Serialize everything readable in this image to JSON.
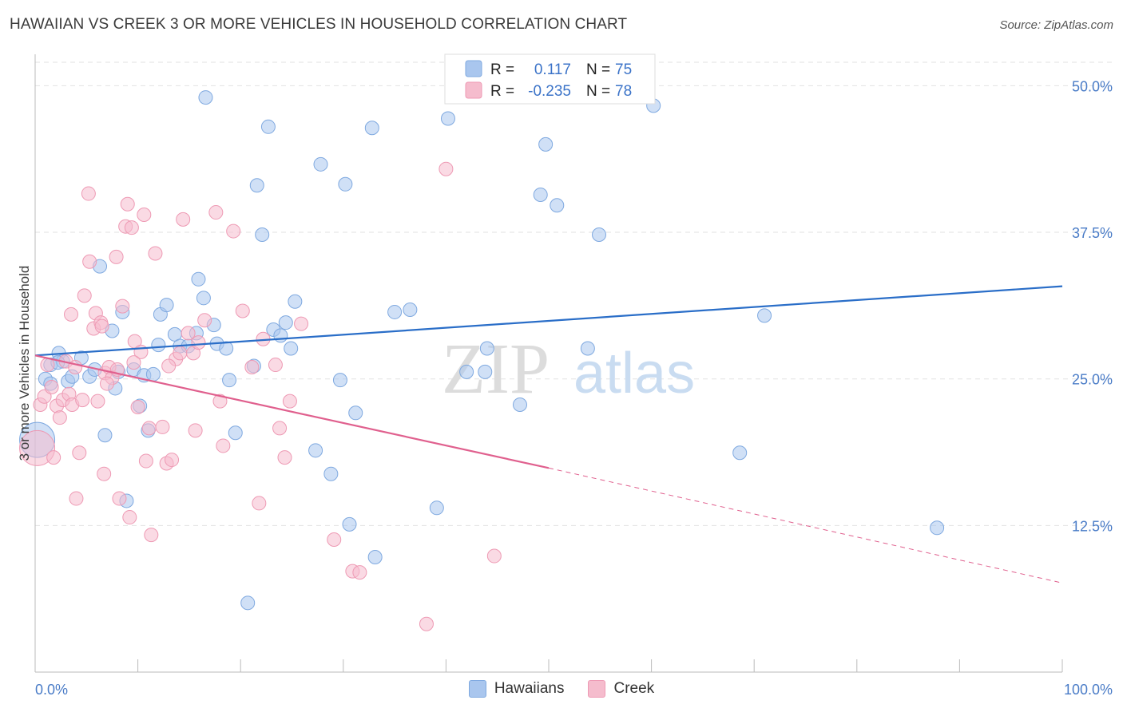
{
  "title": "HAWAIIAN VS CREEK 3 OR MORE VEHICLES IN HOUSEHOLD CORRELATION CHART",
  "source": "Source: ZipAtlas.com",
  "watermark": {
    "zip": "ZIP",
    "atlas": "atlas"
  },
  "legend": {
    "r_label": "R =",
    "n_label": "N =",
    "entries": [
      {
        "r": "0.117",
        "n": "75"
      },
      {
        "r": "-0.235",
        "n": "78"
      }
    ]
  },
  "bottom_legend": [
    "Hawaiians",
    "Creek"
  ],
  "chart_data": {
    "type": "scatter",
    "title": "HAWAIIAN VS CREEK 3 OR MORE VEHICLES IN HOUSEHOLD CORRELATION CHART",
    "xlabel": "",
    "ylabel": "3 or more Vehicles in Household",
    "xlim": [
      0,
      100
    ],
    "ylim": [
      0,
      52
    ],
    "x_tick_labels": [
      "0.0%",
      "100.0%"
    ],
    "y_ticks": [
      12.5,
      25.0,
      37.5,
      50.0
    ],
    "y_tick_labels": [
      "12.5%",
      "25.0%",
      "37.5%",
      "50.0%"
    ],
    "grid": true,
    "series": [
      {
        "name": "Hawaiians",
        "color": "#7fa9e0",
        "fill": "#a9c6ee",
        "r": 0.117,
        "n": 75,
        "trend": {
          "x": [
            0,
            100
          ],
          "y": [
            27.0,
            32.9
          ],
          "color": "#2a6ec8"
        },
        "points": [
          [
            0.2,
            19.8
          ],
          [
            1.0,
            25.0
          ],
          [
            1.5,
            26.2
          ],
          [
            2.3,
            27.2
          ],
          [
            2.7,
            26.5
          ],
          [
            3.2,
            24.8
          ],
          [
            3.6,
            25.2
          ],
          [
            4.5,
            26.8
          ],
          [
            5.3,
            25.2
          ],
          [
            5.8,
            25.8
          ],
          [
            6.3,
            34.6
          ],
          [
            6.8,
            20.2
          ],
          [
            7.5,
            29.1
          ],
          [
            7.8,
            24.2
          ],
          [
            8.5,
            30.7
          ],
          [
            8.9,
            14.6
          ],
          [
            9.6,
            25.8
          ],
          [
            10.2,
            22.7
          ],
          [
            10.6,
            25.3
          ],
          [
            11.0,
            20.6
          ],
          [
            11.5,
            25.4
          ],
          [
            12.2,
            30.5
          ],
          [
            12.8,
            31.3
          ],
          [
            13.6,
            28.8
          ],
          [
            14.1,
            27.8
          ],
          [
            14.9,
            27.8
          ],
          [
            15.7,
            28.9
          ],
          [
            15.9,
            33.5
          ],
          [
            16.4,
            31.9
          ],
          [
            16.6,
            49.0
          ],
          [
            17.4,
            29.6
          ],
          [
            17.7,
            28.0
          ],
          [
            18.6,
            27.6
          ],
          [
            18.9,
            24.9
          ],
          [
            19.5,
            20.4
          ],
          [
            20.7,
            5.9
          ],
          [
            21.3,
            26.1
          ],
          [
            21.6,
            41.5
          ],
          [
            22.1,
            37.3
          ],
          [
            22.7,
            46.5
          ],
          [
            23.2,
            29.2
          ],
          [
            23.9,
            28.7
          ],
          [
            24.4,
            29.8
          ],
          [
            24.9,
            27.6
          ],
          [
            25.3,
            31.6
          ],
          [
            27.3,
            18.9
          ],
          [
            27.8,
            43.3
          ],
          [
            28.8,
            16.9
          ],
          [
            29.7,
            24.9
          ],
          [
            30.2,
            41.6
          ],
          [
            30.6,
            12.6
          ],
          [
            31.2,
            22.1
          ],
          [
            32.8,
            46.4
          ],
          [
            33.1,
            9.8
          ],
          [
            35.0,
            30.7
          ],
          [
            36.5,
            30.9
          ],
          [
            39.1,
            14.0
          ],
          [
            40.2,
            47.2
          ],
          [
            42.0,
            25.6
          ],
          [
            43.8,
            25.6
          ],
          [
            44.0,
            27.6
          ],
          [
            47.2,
            22.8
          ],
          [
            49.2,
            40.7
          ],
          [
            49.7,
            45.0
          ],
          [
            50.8,
            39.8
          ],
          [
            53.8,
            27.6
          ],
          [
            54.9,
            37.3
          ],
          [
            60.2,
            48.3
          ],
          [
            68.6,
            18.7
          ],
          [
            71.0,
            30.4
          ],
          [
            87.8,
            12.3
          ],
          [
            2.2,
            26.4
          ],
          [
            8.1,
            25.6
          ],
          [
            1.5,
            24.6
          ],
          [
            12.0,
            27.9
          ]
        ]
      },
      {
        "name": "Creek",
        "color": "#ee9ab4",
        "fill": "#f5bccd",
        "r": -0.235,
        "n": 78,
        "trend": {
          "x": [
            0,
            50
          ],
          "y": [
            27.0,
            17.4
          ],
          "dash_x": [
            50,
            100
          ],
          "dash_y": [
            17.4,
            7.6
          ],
          "color": "#e0608e"
        },
        "points": [
          [
            0.2,
            19.1
          ],
          [
            0.5,
            22.8
          ],
          [
            0.9,
            23.5
          ],
          [
            1.2,
            26.2
          ],
          [
            1.6,
            24.3
          ],
          [
            1.8,
            18.3
          ],
          [
            2.1,
            22.7
          ],
          [
            2.4,
            21.7
          ],
          [
            2.7,
            23.2
          ],
          [
            3.0,
            26.5
          ],
          [
            3.3,
            23.7
          ],
          [
            3.5,
            30.5
          ],
          [
            3.6,
            22.8
          ],
          [
            4.0,
            14.8
          ],
          [
            4.3,
            18.7
          ],
          [
            4.6,
            23.2
          ],
          [
            4.8,
            32.1
          ],
          [
            5.2,
            40.8
          ],
          [
            5.3,
            35.0
          ],
          [
            5.7,
            29.3
          ],
          [
            5.9,
            30.6
          ],
          [
            6.1,
            23.1
          ],
          [
            6.4,
            29.8
          ],
          [
            6.7,
            16.9
          ],
          [
            6.8,
            25.5
          ],
          [
            7.2,
            26.0
          ],
          [
            7.5,
            25.1
          ],
          [
            7.9,
            35.4
          ],
          [
            8.0,
            25.8
          ],
          [
            8.2,
            14.8
          ],
          [
            8.5,
            31.2
          ],
          [
            8.8,
            38.0
          ],
          [
            9.0,
            39.9
          ],
          [
            9.2,
            13.2
          ],
          [
            9.4,
            37.9
          ],
          [
            9.7,
            28.2
          ],
          [
            10.0,
            22.6
          ],
          [
            10.3,
            27.3
          ],
          [
            10.6,
            39.0
          ],
          [
            10.8,
            18.0
          ],
          [
            11.1,
            20.8
          ],
          [
            11.3,
            11.7
          ],
          [
            11.7,
            35.7
          ],
          [
            12.4,
            20.9
          ],
          [
            12.8,
            17.8
          ],
          [
            13.3,
            18.1
          ],
          [
            13.7,
            26.7
          ],
          [
            14.1,
            27.2
          ],
          [
            14.4,
            38.6
          ],
          [
            14.9,
            28.9
          ],
          [
            15.4,
            27.2
          ],
          [
            15.6,
            20.6
          ],
          [
            15.9,
            28.1
          ],
          [
            16.5,
            30.0
          ],
          [
            17.6,
            39.2
          ],
          [
            18.0,
            23.1
          ],
          [
            18.3,
            19.3
          ],
          [
            19.3,
            37.6
          ],
          [
            20.2,
            30.8
          ],
          [
            21.1,
            26.0
          ],
          [
            21.8,
            14.4
          ],
          [
            22.2,
            28.4
          ],
          [
            23.4,
            26.2
          ],
          [
            23.8,
            20.8
          ],
          [
            24.3,
            18.3
          ],
          [
            24.8,
            23.1
          ],
          [
            25.9,
            29.7
          ],
          [
            29.1,
            11.3
          ],
          [
            30.9,
            8.6
          ],
          [
            31.6,
            8.5
          ],
          [
            38.1,
            4.1
          ],
          [
            40.0,
            42.9
          ],
          [
            44.7,
            9.9
          ],
          [
            9.6,
            26.4
          ],
          [
            3.9,
            26.0
          ],
          [
            6.5,
            29.5
          ],
          [
            13.0,
            26.1
          ],
          [
            7.0,
            24.6
          ]
        ]
      }
    ]
  }
}
